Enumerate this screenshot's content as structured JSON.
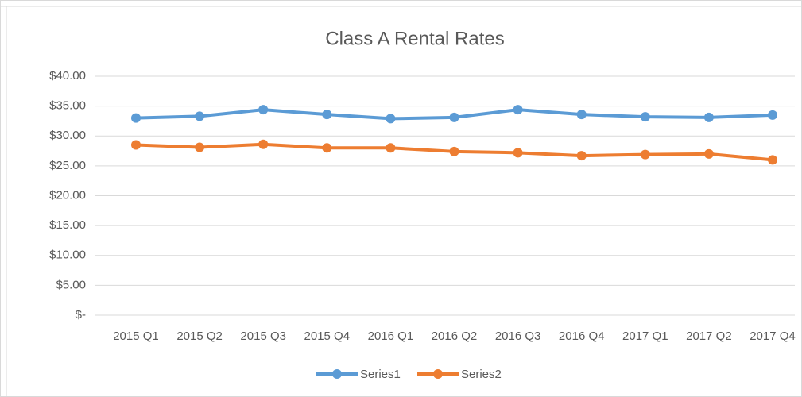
{
  "chart_data": {
    "type": "line",
    "title": "Class A Rental Rates",
    "categories": [
      "2015 Q1",
      "2015 Q2",
      "2015 Q3",
      "2015 Q4",
      "2016 Q1",
      "2016 Q2",
      "2016 Q3",
      "2016 Q4",
      "2017 Q1",
      "2017 Q2",
      "2017 Q4"
    ],
    "series": [
      {
        "name": "Series1",
        "color": "#5b9bd5",
        "values": [
          33.0,
          33.3,
          34.4,
          33.6,
          32.9,
          33.1,
          34.4,
          33.6,
          33.2,
          33.1,
          33.5
        ]
      },
      {
        "name": "Series2",
        "color": "#ed7d31",
        "values": [
          28.5,
          28.1,
          28.6,
          28.0,
          28.0,
          27.4,
          27.2,
          26.7,
          26.9,
          27.0,
          26.0
        ]
      }
    ],
    "ylim": [
      0,
      40
    ],
    "yticks": [
      {
        "value": 0,
        "label": "$-"
      },
      {
        "value": 5,
        "label": "$5.00"
      },
      {
        "value": 10,
        "label": "$10.00"
      },
      {
        "value": 15,
        "label": "$15.00"
      },
      {
        "value": 20,
        "label": "$20.00"
      },
      {
        "value": 25,
        "label": "$25.00"
      },
      {
        "value": 30,
        "label": "$30.00"
      },
      {
        "value": 35,
        "label": "$35.00"
      },
      {
        "value": 40,
        "label": "$40.00"
      }
    ],
    "grid": true,
    "legend": "bottom"
  }
}
